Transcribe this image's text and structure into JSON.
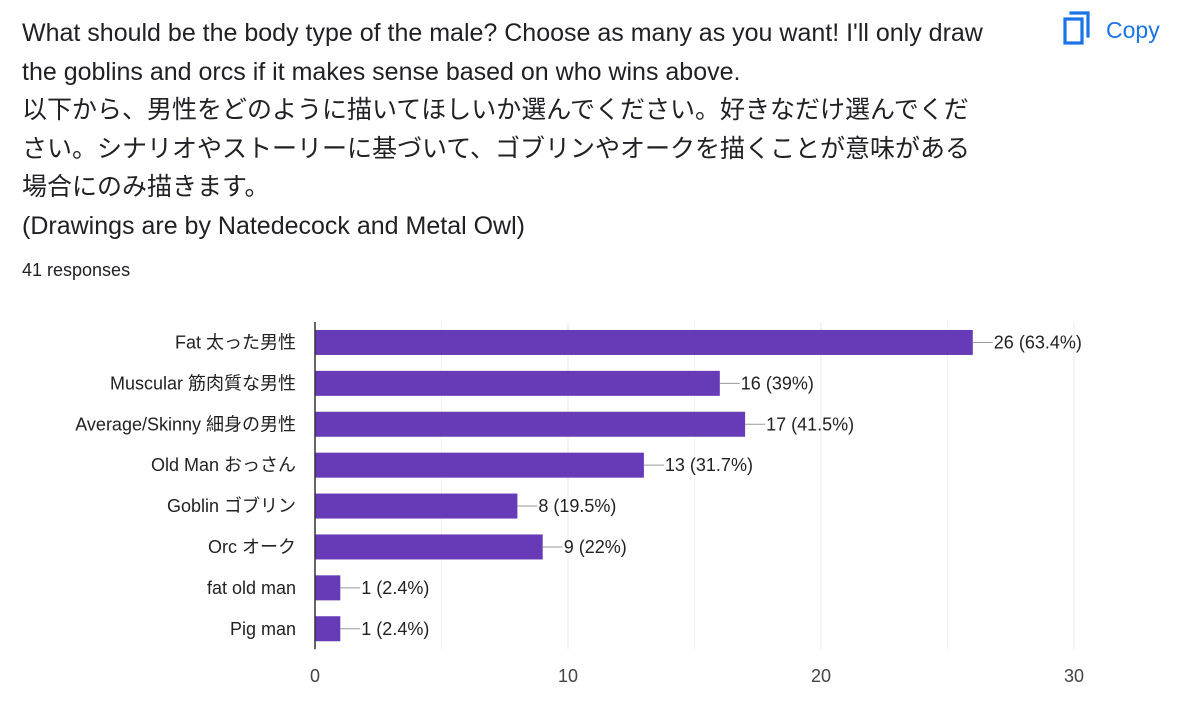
{
  "question": {
    "lines": [
      "What should be the body type of the male? Choose as many as you want! I'll only draw",
      "the goblins and orcs if it makes sense based on who wins above.",
      "以下から、男性をどのように描いてほしいか選んでください。好きなだけ選んでくだ",
      "さい。シナリオやストーリーに基づいて、ゴブリンやオークを描くことが意味がある",
      "場合にのみ描きます。",
      "(Drawings are by Natedecock and Metal Owl)"
    ]
  },
  "copy_button": {
    "label": "Copy",
    "icon": "copy-icon",
    "color": "#1a73e8"
  },
  "responses": "41 responses",
  "bar_color": "#673ab7",
  "chart_data": {
    "type": "bar",
    "orientation": "horizontal",
    "categories": [
      "Fat 太った男性",
      "Muscular 筋肉質な男性",
      "Average/Skinny 細身の男性",
      "Old Man おっさん",
      "Goblin ゴブリン",
      "Orc オーク",
      "fat old man",
      "Pig man"
    ],
    "values": [
      26,
      16,
      17,
      13,
      8,
      9,
      1,
      1
    ],
    "data_labels": [
      "26 (63.4%)",
      "16 (39%)",
      "17 (41.5%)",
      "13 (31.7%)",
      "8 (19.5%)",
      "9 (22%)",
      "1 (2.4%)",
      "1 (2.4%)"
    ],
    "xlim": [
      0,
      30
    ],
    "xticks": [
      0,
      10,
      20,
      30
    ],
    "grid": true,
    "title": "",
    "xlabel": "",
    "ylabel": ""
  }
}
